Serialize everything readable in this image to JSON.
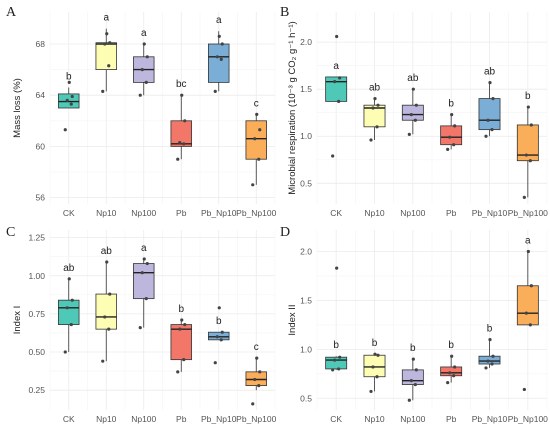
{
  "colors": {
    "CK": "#4ec9b8",
    "Np10": "#fdfdb3",
    "Np100": "#bdb6dd",
    "Pb": "#f27769",
    "Pb_Np10": "#7aaed6",
    "Pb_Np100": "#faae5a",
    "grid": "#ebebeb",
    "point": "#444444"
  },
  "chart_data": [
    {
      "type": "box",
      "panel": "A",
      "ylabel": "Mass loss (%)",
      "ylim": [
        55.5,
        70.5
      ],
      "yticks": [
        56,
        60,
        64,
        68
      ],
      "categories": [
        "CK",
        "Np10",
        "Np100",
        "Pb",
        "Pb_Np10",
        "Pb_Np100"
      ],
      "boxes": [
        {
          "q1": 63.0,
          "median": 63.5,
          "q3": 64.1,
          "whisker_low": 63.0,
          "whisker_high": 64.6,
          "points": [
            61.3,
            63.3,
            63.6,
            63.9,
            65.0
          ],
          "letter": "b"
        },
        {
          "q1": 66.0,
          "median": 68.0,
          "q3": 68.1,
          "whisker_low": 64.3,
          "whisker_high": 69.2,
          "points": [
            64.3,
            66.3,
            68.0,
            68.1,
            68.8
          ],
          "letter": "a"
        },
        {
          "q1": 65.0,
          "median": 66.0,
          "q3": 67.0,
          "whisker_low": 64.0,
          "whisker_high": 68.0,
          "points": [
            64.0,
            65.0,
            66.0,
            67.0,
            68.0
          ],
          "letter": "a"
        },
        {
          "q1": 60.0,
          "median": 60.2,
          "q3": 62.0,
          "whisker_low": 59.0,
          "whisker_high": 64.0,
          "points": [
            59.0,
            60.2,
            60.3,
            62.0,
            64.0
          ],
          "letter": "bc"
        },
        {
          "q1": 65.0,
          "median": 67.0,
          "q3": 68.0,
          "whisker_low": 64.3,
          "whisker_high": 69.0,
          "points": [
            64.3,
            66.8,
            67.0,
            68.0,
            68.6
          ],
          "letter": "a"
        },
        {
          "q1": 59.0,
          "median": 60.6,
          "q3": 62.0,
          "whisker_low": 57.0,
          "whisker_high": 62.5,
          "points": [
            57.0,
            59.0,
            60.6,
            61.3,
            62.5
          ],
          "letter": "c"
        }
      ]
    },
    {
      "type": "box",
      "panel": "B",
      "ylabel": "Microbial respiration (10⁻³ g CO₂ g⁻¹ h⁻¹)",
      "ylim": [
        0.28,
        2.32
      ],
      "yticks": [
        0.5,
        1.0,
        1.5,
        2.0
      ],
      "yticklabels": [
        "0.5",
        "1.0",
        "1.5",
        "2.0"
      ],
      "categories": [
        "CK",
        "Np10",
        "Np100",
        "Pb",
        "Pb_Np10",
        "Pb_Np100"
      ],
      "boxes": [
        {
          "q1": 1.37,
          "median": 1.58,
          "q3": 1.63,
          "whisker_low": 1.37,
          "whisker_high": 1.63,
          "points": [
            0.79,
            1.37,
            1.58,
            1.62,
            2.06
          ],
          "letter": "a"
        },
        {
          "q1": 1.1,
          "median": 1.3,
          "q3": 1.33,
          "whisker_low": 0.96,
          "whisker_high": 1.4,
          "points": [
            0.96,
            1.1,
            1.3,
            1.33,
            1.4
          ],
          "letter": "ab"
        },
        {
          "q1": 1.17,
          "median": 1.23,
          "q3": 1.33,
          "whisker_low": 1.02,
          "whisker_high": 1.5,
          "points": [
            1.02,
            1.17,
            1.23,
            1.33,
            1.5
          ],
          "letter": "ab"
        },
        {
          "q1": 0.91,
          "median": 0.99,
          "q3": 1.11,
          "whisker_low": 0.86,
          "whisker_high": 1.23,
          "points": [
            0.86,
            0.91,
            0.99,
            1.11,
            1.23
          ],
          "letter": "b"
        },
        {
          "q1": 1.07,
          "median": 1.17,
          "q3": 1.4,
          "whisker_low": 1.0,
          "whisker_high": 1.57,
          "points": [
            1.0,
            1.07,
            1.17,
            1.4,
            1.57
          ],
          "letter": "ab"
        },
        {
          "q1": 0.74,
          "median": 0.8,
          "q3": 1.12,
          "whisker_low": 0.35,
          "whisker_high": 1.31,
          "points": [
            0.35,
            0.74,
            0.8,
            1.12,
            1.31
          ],
          "letter": "b"
        }
      ]
    },
    {
      "type": "box",
      "panel": "C",
      "ylabel": "Index I",
      "ylim": [
        0.12,
        1.3
      ],
      "yticks": [
        0.25,
        0.5,
        0.75,
        1.0,
        1.25
      ],
      "yticklabels": [
        "0.25",
        "0.50",
        "0.75",
        "1.00",
        "1.25"
      ],
      "categories": [
        "CK",
        "Np10",
        "Np100",
        "Pb",
        "Pb_Np10",
        "Pb_Np100"
      ],
      "boxes": [
        {
          "q1": 0.68,
          "median": 0.79,
          "q3": 0.84,
          "whisker_low": 0.5,
          "whisker_high": 0.98,
          "points": [
            0.5,
            0.68,
            0.79,
            0.84,
            0.98
          ],
          "letter": "ab"
        },
        {
          "q1": 0.65,
          "median": 0.73,
          "q3": 0.88,
          "whisker_low": 0.44,
          "whisker_high": 1.09,
          "points": [
            0.44,
            0.65,
            0.73,
            0.88,
            1.09
          ],
          "letter": "ab"
        },
        {
          "q1": 0.85,
          "median": 1.02,
          "q3": 1.08,
          "whisker_low": 0.66,
          "whisker_high": 1.11,
          "points": [
            0.66,
            0.85,
            1.02,
            1.08,
            1.11
          ],
          "letter": "a"
        },
        {
          "q1": 0.45,
          "median": 0.65,
          "q3": 0.68,
          "whisker_low": 0.37,
          "whisker_high": 0.71,
          "points": [
            0.37,
            0.45,
            0.65,
            0.68,
            0.71
          ],
          "letter": "b"
        },
        {
          "q1": 0.58,
          "median": 0.6,
          "q3": 0.63,
          "whisker_low": 0.58,
          "whisker_high": 0.63,
          "points": [
            0.43,
            0.58,
            0.6,
            0.63,
            0.79
          ],
          "letter": "b"
        },
        {
          "q1": 0.28,
          "median": 0.32,
          "q3": 0.37,
          "whisker_low": 0.25,
          "whisker_high": 0.46,
          "points": [
            0.16,
            0.28,
            0.32,
            0.37,
            0.46
          ],
          "letter": "c"
        }
      ]
    },
    {
      "type": "box",
      "panel": "D",
      "ylabel": "Index II",
      "ylim": [
        0.38,
        2.22
      ],
      "yticks": [
        0.5,
        1.0,
        1.5,
        2.0
      ],
      "yticklabels": [
        "0.5",
        "1.0",
        "1.5",
        "2.0"
      ],
      "categories": [
        "CK",
        "Np10",
        "Np100",
        "Pb",
        "Pb_Np10",
        "Pb_Np100"
      ],
      "boxes": [
        {
          "q1": 0.8,
          "median": 0.89,
          "q3": 0.92,
          "whisker_low": 0.79,
          "whisker_high": 0.93,
          "points": [
            0.79,
            0.8,
            0.89,
            0.92,
            1.83
          ],
          "letter": "b"
        },
        {
          "q1": 0.72,
          "median": 0.82,
          "q3": 0.94,
          "whisker_low": 0.57,
          "whisker_high": 0.95,
          "points": [
            0.57,
            0.72,
            0.82,
            0.94,
            0.95
          ],
          "letter": "b"
        },
        {
          "q1": 0.64,
          "median": 0.68,
          "q3": 0.79,
          "whisker_low": 0.48,
          "whisker_high": 0.9,
          "points": [
            0.48,
            0.64,
            0.68,
            0.79,
            0.9
          ],
          "letter": "b"
        },
        {
          "q1": 0.73,
          "median": 0.76,
          "q3": 0.82,
          "whisker_low": 0.66,
          "whisker_high": 0.93,
          "points": [
            0.66,
            0.73,
            0.76,
            0.82,
            0.93
          ],
          "letter": "b"
        },
        {
          "q1": 0.85,
          "median": 0.88,
          "q3": 0.93,
          "whisker_low": 0.81,
          "whisker_high": 1.1,
          "points": [
            0.81,
            0.85,
            0.88,
            0.93,
            1.1
          ],
          "letter": "b"
        },
        {
          "q1": 1.25,
          "median": 1.37,
          "q3": 1.65,
          "whisker_low": 1.25,
          "whisker_high": 2.0,
          "points": [
            0.59,
            1.25,
            1.37,
            1.65,
            2.0
          ],
          "letter": "a"
        }
      ]
    }
  ]
}
